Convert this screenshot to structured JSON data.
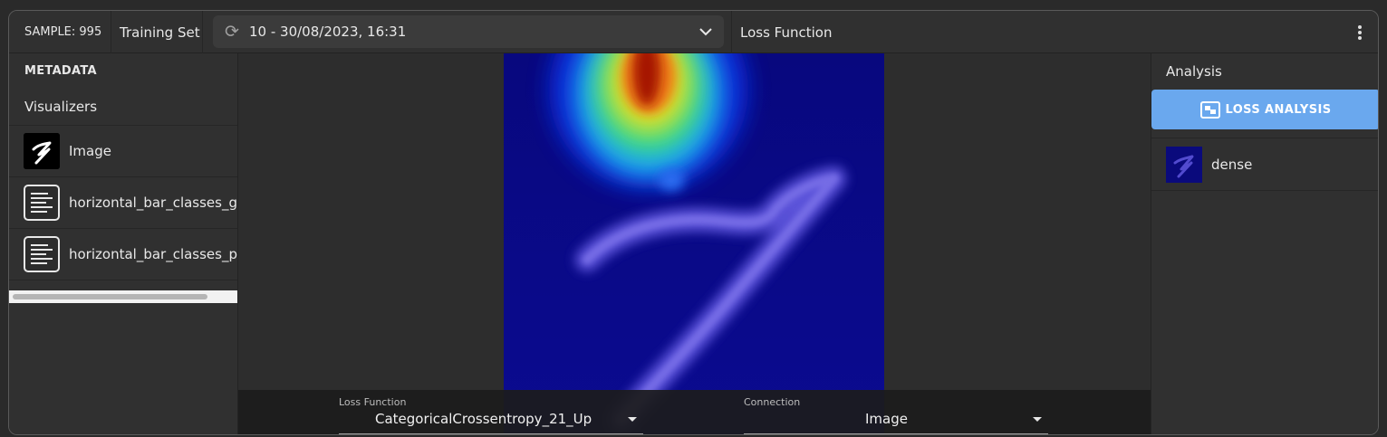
{
  "header": {
    "sample_label": "SAMPLE: 995",
    "dataset_label": "Training Set",
    "version_value": "10 - 30/08/2023, 16:31",
    "panel_title": "Loss Function"
  },
  "left_panel": {
    "metadata_heading": "METADATA",
    "visualizers_heading": "Visualizers",
    "items": [
      {
        "label": "Image",
        "icon": "digit-image-thumbnail"
      },
      {
        "label": "horizontal_bar_classes_gt",
        "icon": "text-lines-icon"
      },
      {
        "label": "horizontal_bar_classes_pred",
        "icon": "text-lines-icon"
      }
    ]
  },
  "center": {
    "loss_function_label": "Loss Function",
    "loss_function_value": "CategoricalCrossentropy_21_Up",
    "connection_label": "Connection",
    "connection_value": "Image"
  },
  "right_panel": {
    "analysis_heading": "Analysis",
    "loss_analysis_button": "LOSS ANALYSIS",
    "items": [
      {
        "label": "dense",
        "icon": "heatmap-thumbnail"
      }
    ]
  },
  "colors": {
    "accent": "#6aa8ee",
    "background": "#303030",
    "heatmap_base": "#0a0a8a"
  }
}
